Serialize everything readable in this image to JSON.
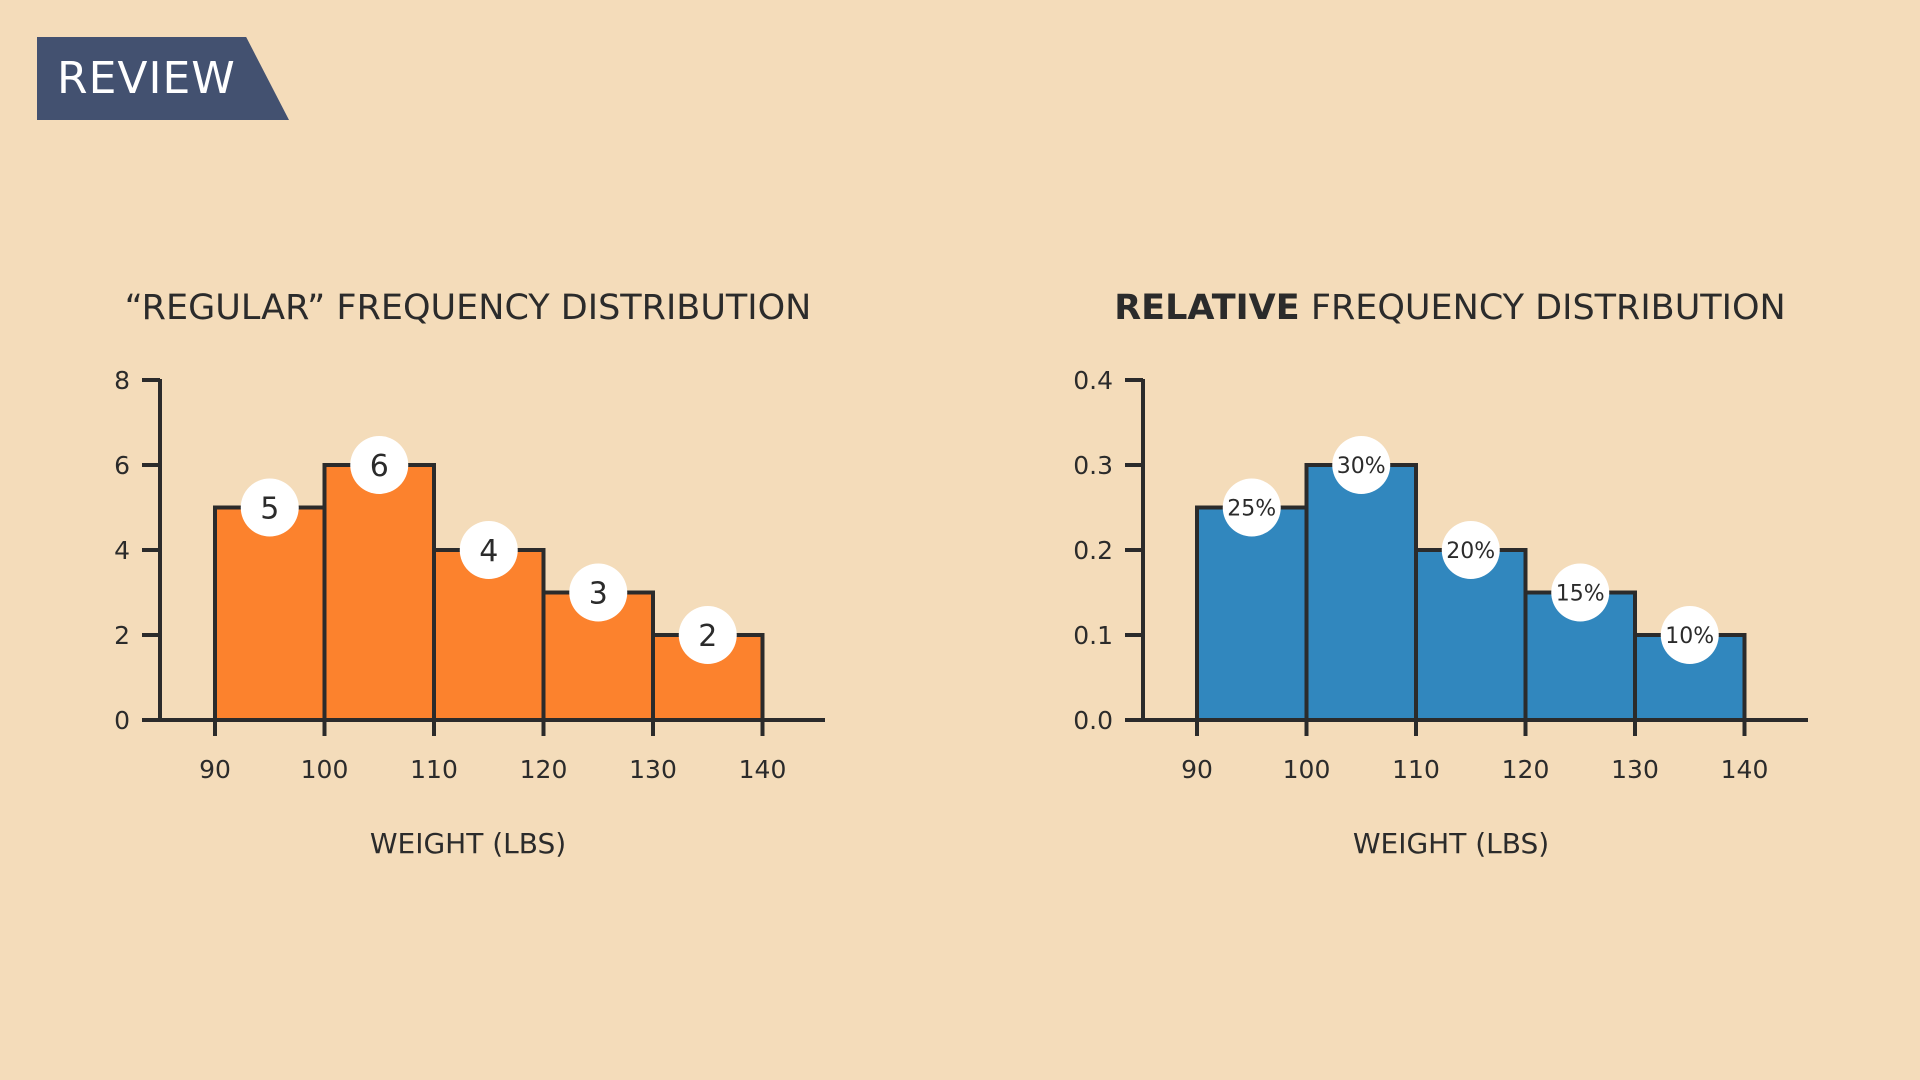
{
  "banner": {
    "label": "REVIEW"
  },
  "chart_data": [
    {
      "type": "bar",
      "title": "“REGULAR” FREQUENCY DISTRIBUTION",
      "xlabel": "WEIGHT (LBS)",
      "ylabel": "",
      "bin_edges": [
        90,
        100,
        110,
        120,
        130,
        140
      ],
      "x_ticks": [
        "90",
        "100",
        "110",
        "120",
        "130",
        "140"
      ],
      "y_ticks": [
        "0",
        "2",
        "4",
        "6",
        "8"
      ],
      "ylim": [
        0,
        8
      ],
      "values": [
        5,
        6,
        4,
        3,
        2
      ],
      "data_labels": [
        "5",
        "6",
        "4",
        "3",
        "2"
      ],
      "color": "#fc822d",
      "grid": false
    },
    {
      "type": "bar",
      "title_bold": "RELATIVE",
      "title": "FREQUENCY DISTRIBUTION",
      "xlabel": "WEIGHT (LBS)",
      "ylabel": "",
      "bin_edges": [
        90,
        100,
        110,
        120,
        130,
        140
      ],
      "x_ticks": [
        "90",
        "100",
        "110",
        "120",
        "130",
        "140"
      ],
      "y_ticks": [
        "0.0",
        "0.1",
        "0.2",
        "0.3",
        "0.4"
      ],
      "ylim": [
        0,
        0.4
      ],
      "values": [
        0.25,
        0.3,
        0.2,
        0.15,
        0.1
      ],
      "data_labels": [
        "25%",
        "30%",
        "20%",
        "15%",
        "10%"
      ],
      "color": "#3187be",
      "grid": false
    }
  ]
}
